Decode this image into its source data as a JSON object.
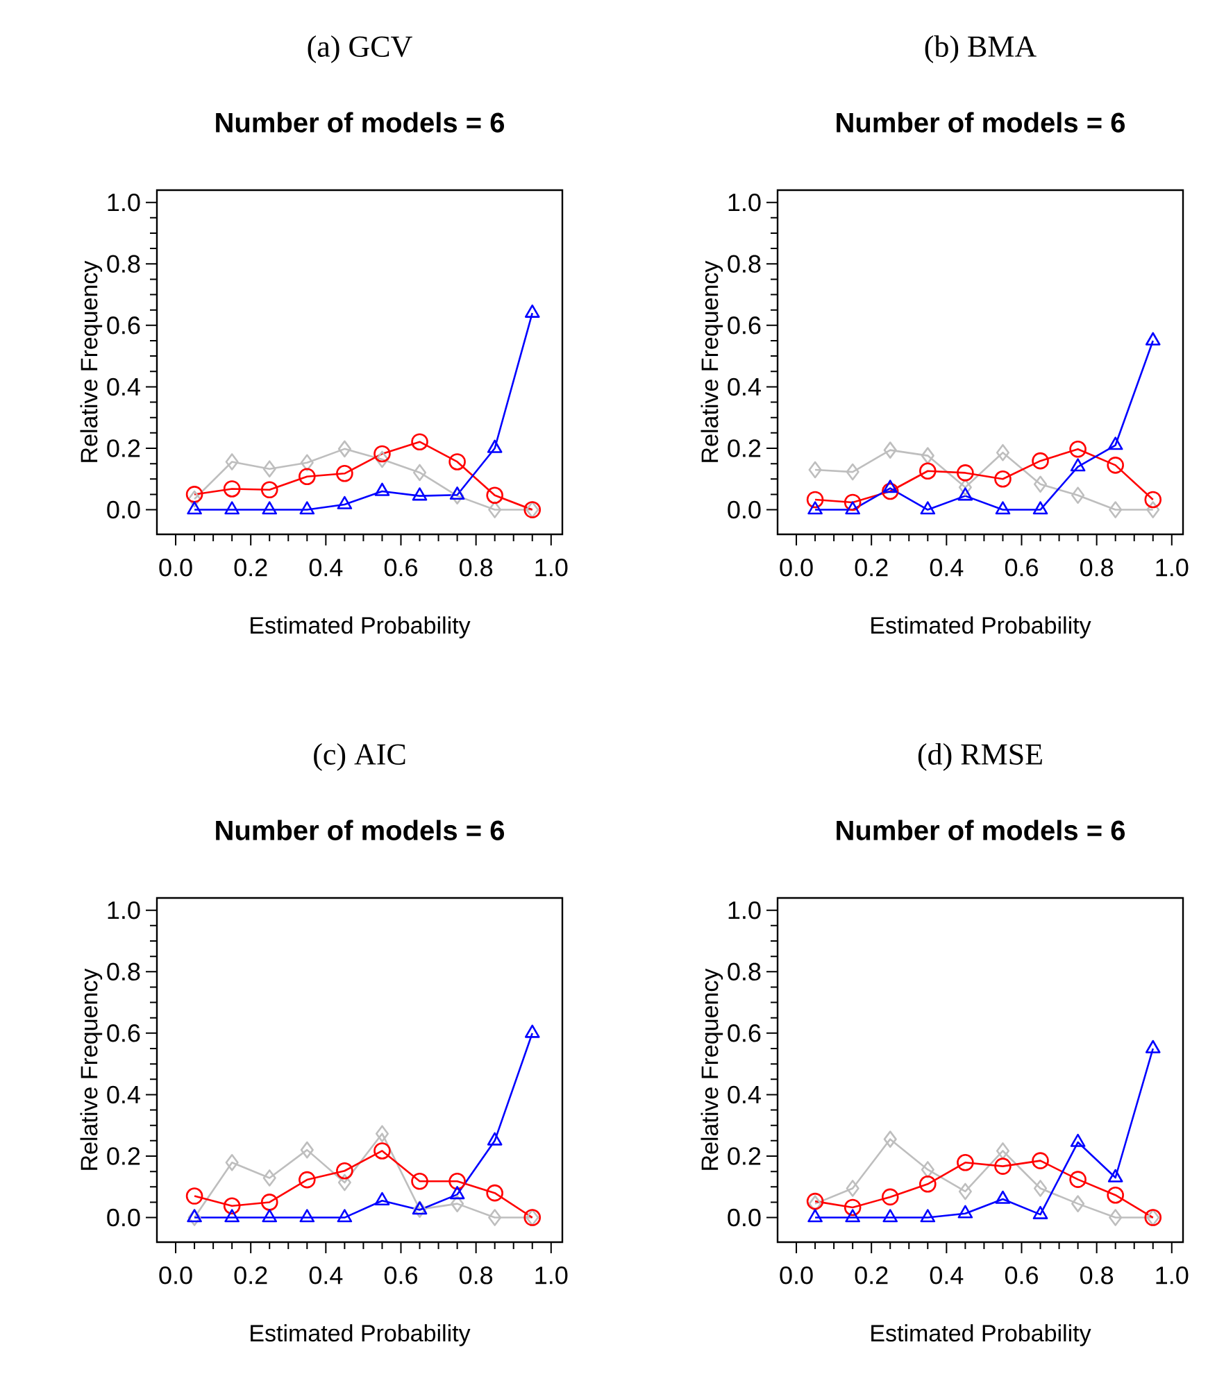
{
  "chart_data": [
    {
      "type": "line",
      "title": "(a) GCV",
      "subtitle": "Number of models = 6",
      "xlabel": "Estimated Probability",
      "ylabel": "Relative Frequency",
      "x": [
        0.05,
        0.15,
        0.25,
        0.35,
        0.45,
        0.55,
        0.65,
        0.75,
        0.85,
        0.95
      ],
      "series": [
        {
          "color": "#bebebe",
          "marker": "diamond",
          "values": [
            0.035,
            0.156,
            0.133,
            0.153,
            0.198,
            0.164,
            0.121,
            0.045,
            0.0,
            0.0
          ]
        },
        {
          "color": "#ff0000",
          "marker": "circle",
          "values": [
            0.05,
            0.068,
            0.065,
            0.108,
            0.118,
            0.182,
            0.221,
            0.156,
            0.047,
            0.0
          ]
        },
        {
          "color": "#0000ff",
          "marker": "triangle",
          "values": [
            0.0,
            0.0,
            0.0,
            0.0,
            0.017,
            0.06,
            0.045,
            0.048,
            0.2,
            0.64
          ]
        }
      ],
      "xlim": [
        -0.05,
        1.03
      ],
      "ylim": [
        -0.08,
        1.04
      ],
      "xticks": [
        {
          "value": 0,
          "label": "0.0"
        },
        {
          "value": 0.2,
          "label": "0.2"
        },
        {
          "value": 0.4,
          "label": "0.4"
        },
        {
          "value": 0.6,
          "label": "0.6"
        },
        {
          "value": 0.8,
          "label": "0.8"
        },
        {
          "value": 1,
          "label": "1.0"
        }
      ],
      "yticks": [
        {
          "value": 0,
          "label": "0.0"
        },
        {
          "value": 0.2,
          "label": "0.2"
        },
        {
          "value": 0.4,
          "label": "0.4"
        },
        {
          "value": 0.6,
          "label": "0.6"
        },
        {
          "value": 0.8,
          "label": "0.8"
        },
        {
          "value": 1,
          "label": "1.0"
        }
      ]
    },
    {
      "type": "line",
      "title": "(b) BMA",
      "subtitle": "Number of models = 6",
      "xlabel": "Estimated Probability",
      "ylabel": "Relative Frequency",
      "x": [
        0.05,
        0.15,
        0.25,
        0.35,
        0.45,
        0.55,
        0.65,
        0.75,
        0.85,
        0.95
      ],
      "series": [
        {
          "color": "#bebebe",
          "marker": "diamond",
          "values": [
            0.13,
            0.123,
            0.194,
            0.176,
            0.073,
            0.186,
            0.083,
            0.047,
            0.0,
            0.0
          ]
        },
        {
          "color": "#ff0000",
          "marker": "circle",
          "values": [
            0.033,
            0.024,
            0.06,
            0.126,
            0.12,
            0.1,
            0.159,
            0.197,
            0.145,
            0.033
          ]
        },
        {
          "color": "#0000ff",
          "marker": "triangle",
          "values": [
            0.0,
            0.0,
            0.07,
            0.0,
            0.045,
            0.0,
            0.0,
            0.14,
            0.21,
            0.55
          ]
        }
      ],
      "xlim": [
        -0.05,
        1.03
      ],
      "ylim": [
        -0.08,
        1.04
      ],
      "xticks": [
        {
          "value": 0,
          "label": "0.0"
        },
        {
          "value": 0.2,
          "label": "0.2"
        },
        {
          "value": 0.4,
          "label": "0.4"
        },
        {
          "value": 0.6,
          "label": "0.6"
        },
        {
          "value": 0.8,
          "label": "0.8"
        },
        {
          "value": 1,
          "label": "1.0"
        }
      ],
      "yticks": [
        {
          "value": 0,
          "label": "0.0"
        },
        {
          "value": 0.2,
          "label": "0.2"
        },
        {
          "value": 0.4,
          "label": "0.4"
        },
        {
          "value": 0.6,
          "label": "0.6"
        },
        {
          "value": 0.8,
          "label": "0.8"
        },
        {
          "value": 1,
          "label": "1.0"
        }
      ]
    },
    {
      "type": "line",
      "title": "(c) AIC",
      "subtitle": "Number of models = 6",
      "xlabel": "Estimated Probability",
      "ylabel": "Relative Frequency",
      "x": [
        0.05,
        0.15,
        0.25,
        0.35,
        0.45,
        0.55,
        0.65,
        0.75,
        0.85,
        0.95
      ],
      "series": [
        {
          "color": "#bebebe",
          "marker": "diamond",
          "values": [
            0.0,
            0.179,
            0.129,
            0.22,
            0.114,
            0.273,
            0.027,
            0.045,
            0.0,
            0.0
          ]
        },
        {
          "color": "#ff0000",
          "marker": "circle",
          "values": [
            0.07,
            0.038,
            0.05,
            0.123,
            0.152,
            0.217,
            0.118,
            0.118,
            0.08,
            0.0
          ]
        },
        {
          "color": "#0000ff",
          "marker": "triangle",
          "values": [
            0.0,
            0.0,
            0.0,
            0.0,
            0.0,
            0.055,
            0.025,
            0.075,
            0.25,
            0.6
          ]
        }
      ],
      "xlim": [
        -0.05,
        1.03
      ],
      "ylim": [
        -0.08,
        1.04
      ],
      "xticks": [
        {
          "value": 0,
          "label": "0.0"
        },
        {
          "value": 0.2,
          "label": "0.2"
        },
        {
          "value": 0.4,
          "label": "0.4"
        },
        {
          "value": 0.6,
          "label": "0.6"
        },
        {
          "value": 0.8,
          "label": "0.8"
        },
        {
          "value": 1,
          "label": "1.0"
        }
      ],
      "yticks": [
        {
          "value": 0,
          "label": "0.0"
        },
        {
          "value": 0.2,
          "label": "0.2"
        },
        {
          "value": 0.4,
          "label": "0.4"
        },
        {
          "value": 0.6,
          "label": "0.6"
        },
        {
          "value": 0.8,
          "label": "0.8"
        },
        {
          "value": 1,
          "label": "1.0"
        }
      ]
    },
    {
      "type": "line",
      "title": "(d) RMSE",
      "subtitle": "Number of models = 6",
      "xlabel": "Estimated Probability",
      "ylabel": "Relative Frequency",
      "x": [
        0.05,
        0.15,
        0.25,
        0.35,
        0.45,
        0.55,
        0.65,
        0.75,
        0.85,
        0.95
      ],
      "series": [
        {
          "color": "#bebebe",
          "marker": "diamond",
          "values": [
            0.045,
            0.095,
            0.255,
            0.156,
            0.085,
            0.217,
            0.095,
            0.045,
            0.0,
            0.0
          ]
        },
        {
          "color": "#ff0000",
          "marker": "circle",
          "values": [
            0.053,
            0.033,
            0.067,
            0.109,
            0.179,
            0.167,
            0.185,
            0.124,
            0.073,
            0.0
          ]
        },
        {
          "color": "#0000ff",
          "marker": "triangle",
          "values": [
            0.0,
            0.0,
            0.0,
            0.0,
            0.013,
            0.06,
            0.01,
            0.245,
            0.13,
            0.55
          ]
        }
      ],
      "xlim": [
        -0.05,
        1.03
      ],
      "ylim": [
        -0.08,
        1.04
      ],
      "xticks": [
        {
          "value": 0,
          "label": "0.0"
        },
        {
          "value": 0.2,
          "label": "0.2"
        },
        {
          "value": 0.4,
          "label": "0.4"
        },
        {
          "value": 0.6,
          "label": "0.6"
        },
        {
          "value": 0.8,
          "label": "0.8"
        },
        {
          "value": 1,
          "label": "1.0"
        }
      ],
      "yticks": [
        {
          "value": 0,
          "label": "0.0"
        },
        {
          "value": 0.2,
          "label": "0.2"
        },
        {
          "value": 0.4,
          "label": "0.4"
        },
        {
          "value": 0.6,
          "label": "0.6"
        },
        {
          "value": 0.8,
          "label": "0.8"
        },
        {
          "value": 1,
          "label": "1.0"
        }
      ]
    }
  ]
}
